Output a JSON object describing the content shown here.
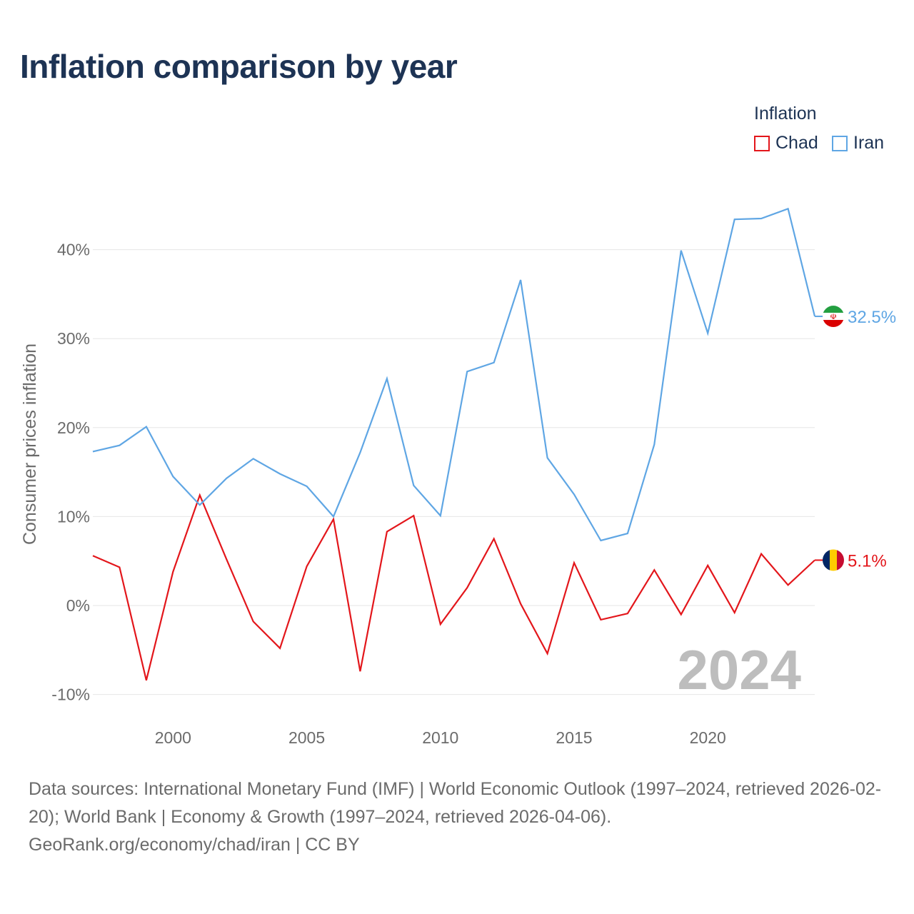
{
  "title": "Inflation comparison by year",
  "legend": {
    "title": "Inflation",
    "items": [
      {
        "name": "Chad",
        "color": "#e3161b"
      },
      {
        "name": "Iran",
        "color": "#5fa6e4"
      }
    ]
  },
  "year_watermark": "2024",
  "end_labels": {
    "chad": "5.1%",
    "iran": "32.5%"
  },
  "footer": {
    "sources": "Data sources: International Monetary Fund (IMF) | World Economic Outlook (1997–2024, retrieved 2026-02-20); World Bank | Economy & Growth (1997–2024, retrieved 2026-04-06).",
    "credit": "GeoRank.org/economy/chad/iran | CC BY"
  },
  "chart_data": {
    "type": "line",
    "title": "Inflation comparison by year",
    "ylabel": "Consumer prices inflation",
    "xlabel": "",
    "xlim": [
      1997,
      2024
    ],
    "ylim": [
      -10,
      47
    ],
    "x_ticks": [
      2000,
      2005,
      2010,
      2015,
      2020
    ],
    "x_tick_labels": [
      "2000",
      "2005",
      "2010",
      "2015",
      "2020"
    ],
    "y_ticks": [
      -10,
      0,
      10,
      20,
      30,
      40
    ],
    "y_tick_labels": [
      "-10%",
      "0%",
      "10%",
      "20%",
      "30%",
      "40%"
    ],
    "grid": true,
    "legend_position": "top-right",
    "x": [
      1997,
      1998,
      1999,
      2000,
      2001,
      2002,
      2003,
      2004,
      2005,
      2006,
      2007,
      2008,
      2009,
      2010,
      2011,
      2012,
      2013,
      2014,
      2015,
      2016,
      2017,
      2018,
      2019,
      2020,
      2021,
      2022,
      2023,
      2024
    ],
    "series": [
      {
        "name": "Chad",
        "color": "#e3161b",
        "values": [
          5.6,
          4.3,
          -8.4,
          3.8,
          12.4,
          5.2,
          -1.8,
          -4.8,
          4.4,
          9.7,
          -7.4,
          8.3,
          10.1,
          -2.1,
          2.0,
          7.5,
          0.2,
          -5.4,
          4.8,
          -1.6,
          -0.9,
          4.0,
          -1.0,
          4.5,
          -0.8,
          5.8,
          2.3,
          5.1
        ]
      },
      {
        "name": "Iran",
        "color": "#5fa6e4",
        "values": [
          17.3,
          18.0,
          20.1,
          14.5,
          11.3,
          14.3,
          16.5,
          14.8,
          13.4,
          10.0,
          17.2,
          25.5,
          13.5,
          10.1,
          26.3,
          27.3,
          36.6,
          16.6,
          12.5,
          7.3,
          8.1,
          18.1,
          39.9,
          30.6,
          43.4,
          43.5,
          44.6,
          32.5
        ]
      }
    ]
  }
}
